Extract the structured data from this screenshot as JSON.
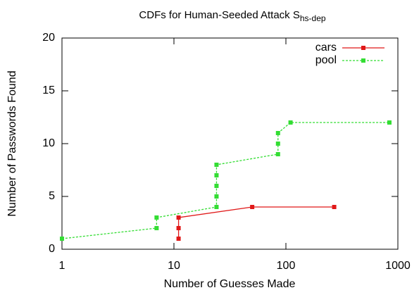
{
  "chart_data": {
    "type": "line",
    "title": "CDFs for Human-Seeded Attack S",
    "title_subscript": "hs-dep",
    "x_label": "Number of Guesses Made",
    "y_label": "Number of Passwords Found",
    "xscale": "log",
    "xlim": [
      1,
      1000
    ],
    "xticks": [
      1,
      10,
      100,
      1000
    ],
    "ylim": [
      0,
      20
    ],
    "yticks": [
      0,
      5,
      10,
      15,
      20
    ],
    "legend": "upper right",
    "series": [
      {
        "name": "cars",
        "color": "#e01818",
        "dash": false,
        "x": [
          11,
          11,
          11,
          50,
          270
        ],
        "values": [
          1,
          2,
          3,
          4,
          4
        ]
      },
      {
        "name": "pool",
        "color": "#33dd33",
        "dash": true,
        "x": [
          1,
          7,
          7,
          24,
          24,
          24,
          24,
          24,
          85,
          85,
          85,
          110,
          840
        ],
        "values": [
          1,
          2,
          3,
          4,
          5,
          6,
          7,
          8,
          9,
          10,
          11,
          12,
          12
        ]
      }
    ]
  }
}
